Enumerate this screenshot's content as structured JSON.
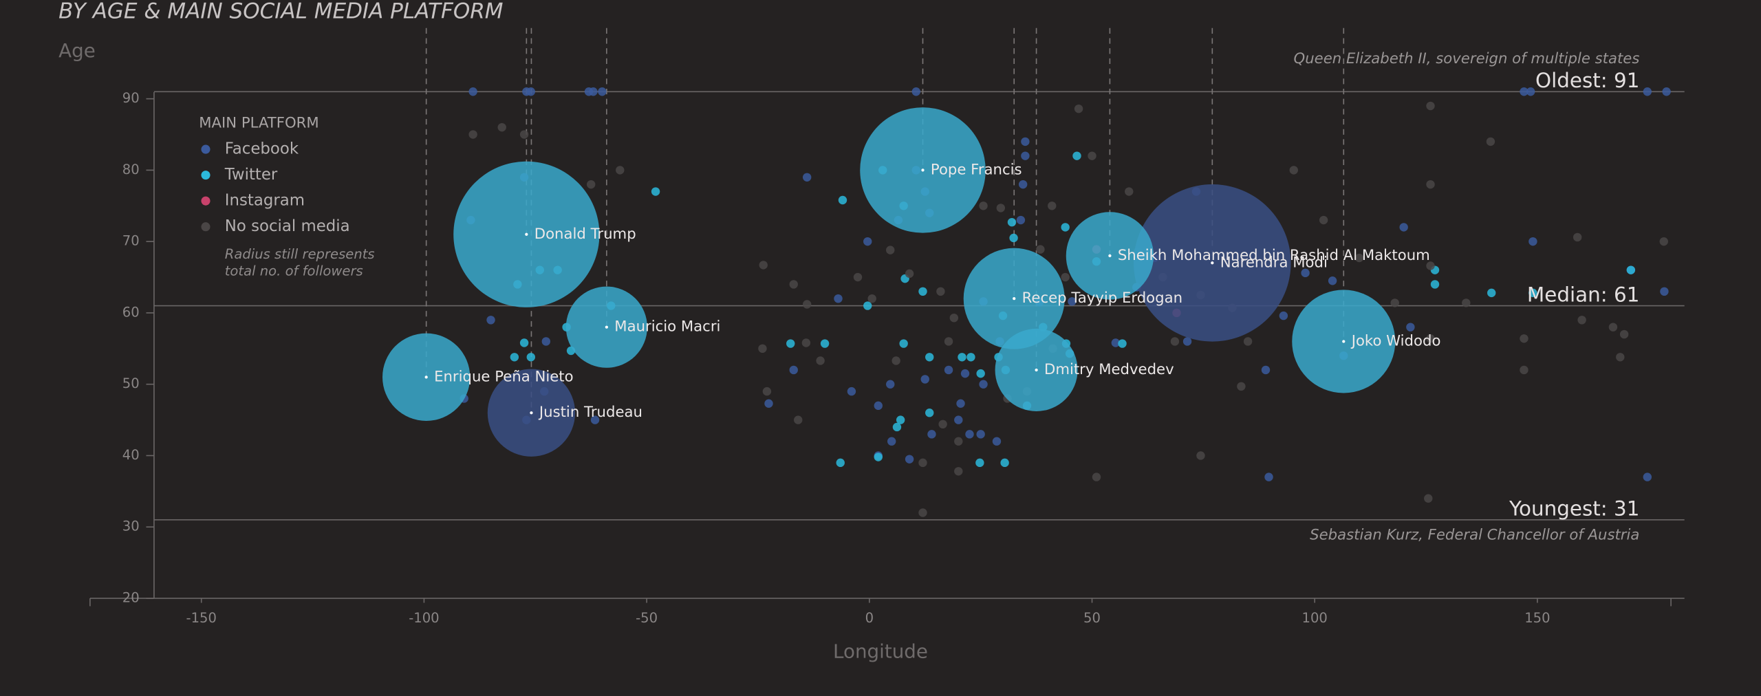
{
  "chart_data": {
    "type": "scatter",
    "title": "BY AGE & MAIN SOCIAL MEDIA PLATFORM",
    "y_label": "Age",
    "x_label": "Longitude",
    "xlim": [
      -175,
      180
    ],
    "ylim": [
      20,
      90
    ],
    "xticks": [
      -150,
      -100,
      -50,
      0,
      50,
      100,
      150
    ],
    "yticks": [
      20,
      30,
      40,
      50,
      60,
      70,
      80,
      90
    ],
    "legend_title": "MAIN PLATFORM",
    "legend_note": [
      "Radius still represents",
      "total no. of followers"
    ],
    "reference_lines": [
      {
        "value": 91,
        "label": "Oldest: 91",
        "note": "Queen Elizabeth II, sovereign of multiple states",
        "note_position": "above"
      },
      {
        "value": 61,
        "label": "Median: 61"
      },
      {
        "value": 31,
        "label": "Youngest: 31",
        "note": "Sebastian Kurz, Federal Chancellor of Austria",
        "note_position": "below"
      }
    ],
    "series": [
      {
        "name": "Facebook",
        "color": "#3b5a9c",
        "bubble_color": "#3a4f84",
        "points": [
          [
            -89,
            91
          ],
          [
            -77,
            91
          ],
          [
            -76,
            91
          ],
          [
            -63,
            91
          ],
          [
            -62,
            91
          ],
          [
            -60,
            91
          ],
          [
            10.5,
            91
          ],
          [
            147,
            91
          ],
          [
            148.5,
            91
          ],
          [
            174.7,
            91
          ],
          [
            179,
            91
          ],
          [
            -89.5,
            73
          ],
          [
            -77.5,
            79
          ],
          [
            -14,
            79
          ],
          [
            10.5,
            80
          ],
          [
            35,
            84
          ],
          [
            35,
            82
          ],
          [
            12.5,
            77
          ],
          [
            34.5,
            78
          ],
          [
            13.5,
            74
          ],
          [
            6.5,
            73
          ],
          [
            34,
            73
          ],
          [
            73.4,
            77
          ],
          [
            120,
            72
          ],
          [
            149,
            70
          ],
          [
            171,
            66
          ],
          [
            -0.4,
            70
          ],
          [
            -7,
            62
          ],
          [
            -85,
            59
          ],
          [
            -91,
            48
          ],
          [
            -61.6,
            45
          ],
          [
            -77,
            45
          ],
          [
            -73,
            49
          ],
          [
            -72.6,
            56
          ],
          [
            -17,
            52
          ],
          [
            89,
            52
          ],
          [
            89.7,
            37
          ],
          [
            174.7,
            37
          ],
          [
            178.5,
            63
          ],
          [
            106.5,
            54
          ],
          [
            121.5,
            58
          ],
          [
            97.9,
            65.6
          ],
          [
            104,
            64.5
          ],
          [
            60,
            63.6
          ],
          [
            64,
            67.7
          ],
          [
            9,
            39.5
          ],
          [
            14,
            43
          ],
          [
            20,
            45
          ],
          [
            22.5,
            43
          ],
          [
            25.6,
            50
          ],
          [
            20.5,
            47.3
          ],
          [
            12.5,
            50.7
          ],
          [
            4.7,
            50
          ],
          [
            -4,
            49
          ],
          [
            2,
            47
          ],
          [
            2,
            40
          ],
          [
            5,
            42
          ],
          [
            17.8,
            52
          ],
          [
            21.5,
            51.5
          ],
          [
            28.6,
            42
          ],
          [
            25,
            43
          ],
          [
            29.3,
            56
          ],
          [
            25.6,
            61.6
          ],
          [
            38.2,
            61.5
          ],
          [
            45.5,
            61.6
          ],
          [
            55.3,
            55.8
          ],
          [
            71.4,
            56
          ],
          [
            93,
            59.6
          ],
          [
            -22.6,
            47.3
          ]
        ],
        "leaders": [
          {
            "name": "Justin Trudeau",
            "x": -75.9,
            "y": 46,
            "size": 36
          },
          {
            "name": "Narendra Modi",
            "x": 77,
            "y": 67,
            "size": 116
          }
        ]
      },
      {
        "name": "Twitter",
        "color": "#2cb9dc",
        "bubble_color": "#3aa9cd",
        "points": [
          [
            -48,
            77
          ],
          [
            -6,
            75.8
          ],
          [
            3,
            80
          ],
          [
            7.7,
            75
          ],
          [
            8,
            64.8
          ],
          [
            12,
            63
          ],
          [
            13.5,
            53.8
          ],
          [
            20.8,
            53.8
          ],
          [
            7.7,
            55.7
          ],
          [
            -0.4,
            61
          ],
          [
            -10,
            55.7
          ],
          [
            -17.7,
            55.7
          ],
          [
            44,
            72
          ],
          [
            46.6,
            82
          ],
          [
            51,
            67.2
          ],
          [
            56.8,
            55.7
          ],
          [
            32,
            72.7
          ],
          [
            32.4,
            70.5
          ],
          [
            35.4,
            47
          ],
          [
            30,
            59.6
          ],
          [
            29,
            53.8
          ],
          [
            22.8,
            53.8
          ],
          [
            25,
            51.5
          ],
          [
            30.6,
            52
          ],
          [
            44.2,
            55.7
          ],
          [
            45,
            54.3
          ],
          [
            39,
            58
          ],
          [
            127,
            66
          ],
          [
            127,
            64
          ],
          [
            139.7,
            62.8
          ],
          [
            149,
            62.8
          ],
          [
            171,
            66
          ],
          [
            -6.5,
            39
          ],
          [
            2,
            39.8
          ],
          [
            7,
            45
          ],
          [
            6.2,
            44
          ],
          [
            13.5,
            46
          ],
          [
            24.8,
            39
          ],
          [
            30.4,
            39
          ],
          [
            -58,
            61
          ],
          [
            -74,
            66
          ],
          [
            -70,
            66
          ],
          [
            -79,
            64
          ],
          [
            -76,
            53.8
          ],
          [
            -79.7,
            53.8
          ],
          [
            -77.5,
            55.8
          ],
          [
            -68,
            58
          ],
          [
            -67,
            54.7
          ]
        ],
        "leaders": [
          {
            "name": "Donald Trump",
            "x": -77,
            "y": 71,
            "size": 100
          },
          {
            "name": "Pope Francis",
            "x": 12,
            "y": 80,
            "size": 74
          },
          {
            "name": "Mauricio Macri",
            "x": -59,
            "y": 58,
            "size": 31
          },
          {
            "name": "Enrique Peña Nieto",
            "x": -99.5,
            "y": 51,
            "size": 36
          },
          {
            "name": "Recep Tayyip Erdogan",
            "x": 32.5,
            "y": 62,
            "size": 48
          },
          {
            "name": "Sheikh Mohammed bin Rashid Al Maktoum",
            "x": 54,
            "y": 68,
            "size": 36
          },
          {
            "name": "Dmitry Medvedev",
            "x": 37.5,
            "y": 52,
            "size": 32
          },
          {
            "name": "Joko Widodo",
            "x": 106.5,
            "y": 56,
            "size": 50
          }
        ]
      },
      {
        "name": "Instagram",
        "color": "#c8426b",
        "points": [
          [
            69,
            60
          ],
          [
            51,
            68.9
          ]
        ],
        "leaders": []
      },
      {
        "name": "No social media",
        "color": "#4a4646",
        "points": [
          [
            -89,
            85
          ],
          [
            -82.5,
            86
          ],
          [
            -77.5,
            85
          ],
          [
            -56,
            80
          ],
          [
            -62.5,
            78
          ],
          [
            -23.8,
            66.7
          ],
          [
            -17,
            64
          ],
          [
            -14,
            61.2
          ],
          [
            -24,
            55
          ],
          [
            -23,
            49
          ],
          [
            -16,
            45
          ],
          [
            -11,
            53.3
          ],
          [
            -14.2,
            55.8
          ],
          [
            -2.6,
            65
          ],
          [
            0.6,
            62
          ],
          [
            4.7,
            68.8
          ],
          [
            9,
            65.5
          ],
          [
            16,
            63
          ],
          [
            19,
            59.3
          ],
          [
            6,
            53.3
          ],
          [
            17.8,
            56
          ],
          [
            16.5,
            44.4
          ],
          [
            20,
            42
          ],
          [
            12,
            39
          ],
          [
            12,
            32
          ],
          [
            20,
            37.8
          ],
          [
            31,
            48
          ],
          [
            35.4,
            49
          ],
          [
            41.2,
            55
          ],
          [
            44,
            65
          ],
          [
            47,
            88.6
          ],
          [
            50,
            82
          ],
          [
            58.3,
            77
          ],
          [
            41,
            75
          ],
          [
            38.4,
            68.9
          ],
          [
            60.3,
            68.6
          ],
          [
            65.9,
            65
          ],
          [
            68.6,
            56
          ],
          [
            74.4,
            62.5
          ],
          [
            74.4,
            40
          ],
          [
            85,
            56
          ],
          [
            81.5,
            60.7
          ],
          [
            95.3,
            80
          ],
          [
            102,
            73
          ],
          [
            110,
            67.7
          ],
          [
            118,
            61.4
          ],
          [
            126,
            89
          ],
          [
            126,
            78
          ],
          [
            126,
            66.6
          ],
          [
            126,
            56.4
          ],
          [
            125.5,
            34
          ],
          [
            134,
            61.4
          ],
          [
            139.5,
            84
          ],
          [
            147,
            56.4
          ],
          [
            147,
            52
          ],
          [
            159,
            70.6
          ],
          [
            160,
            59
          ],
          [
            167,
            58
          ],
          [
            168.6,
            53.8
          ],
          [
            169.5,
            57
          ],
          [
            178.4,
            70
          ],
          [
            51,
            37
          ],
          [
            83.5,
            49.7
          ],
          [
            25.6,
            75
          ],
          [
            29.5,
            74.7
          ]
        ],
        "leaders": []
      }
    ]
  }
}
